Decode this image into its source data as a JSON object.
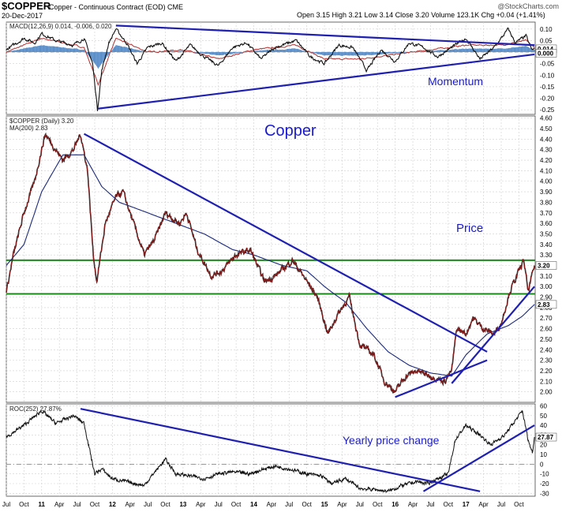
{
  "header": {
    "symbol": "$COPPER",
    "name": "Copper - Continuous Contract (EOD) CME",
    "date": "20-Dec-2017",
    "ohlc": "Open 3.15  High 3.21  Low 3.14  Close 3.20  Volume 123.1K  Chg +0.04 (+1.41%)",
    "credit": "@StockCharts.com"
  },
  "chart_data": [
    {
      "type": "line",
      "panel": "macd",
      "title": "MACD(12,26,9) 0.014, -0.006, 0.020",
      "annotation": "Momentum",
      "y_ticks": [
        "0.10",
        "0.05",
        "0.00",
        "-0.05",
        "-0.10",
        "-0.15",
        "-0.20",
        "-0.25"
      ],
      "ylim": [
        -0.27,
        0.13
      ],
      "value_labels": [
        "0.014",
        "0.000"
      ],
      "anchors": [
        [
          2010.5,
          0.01
        ],
        [
          2010.75,
          0.06
        ],
        [
          2010.9,
          0.04
        ],
        [
          2011.0,
          0.08
        ],
        [
          2011.2,
          0.05
        ],
        [
          2011.45,
          0.03
        ],
        [
          2011.6,
          0.06
        ],
        [
          2011.72,
          -0.05
        ],
        [
          2011.79,
          -0.25
        ],
        [
          2011.85,
          -0.08
        ],
        [
          2011.95,
          0.04
        ],
        [
          2012.05,
          0.1
        ],
        [
          2012.2,
          0.04
        ],
        [
          2012.35,
          -0.05
        ],
        [
          2012.5,
          0.02
        ],
        [
          2012.7,
          0.04
        ],
        [
          2012.9,
          -0.04
        ],
        [
          2013.1,
          0.03
        ],
        [
          2013.3,
          -0.02
        ],
        [
          2013.5,
          -0.06
        ],
        [
          2013.7,
          0.02
        ],
        [
          2013.9,
          0.04
        ],
        [
          2014.1,
          -0.03
        ],
        [
          2014.3,
          0.02
        ],
        [
          2014.6,
          0.05
        ],
        [
          2014.8,
          -0.02
        ],
        [
          2015.0,
          -0.05
        ],
        [
          2015.2,
          0.03
        ],
        [
          2015.4,
          0.02
        ],
        [
          2015.6,
          -0.08
        ],
        [
          2015.8,
          0.01
        ],
        [
          2016.0,
          -0.04
        ],
        [
          2016.2,
          0.04
        ],
        [
          2016.4,
          0.02
        ],
        [
          2016.6,
          -0.02
        ],
        [
          2016.85,
          0.03
        ],
        [
          2017.0,
          0.06
        ],
        [
          2017.2,
          -0.03
        ],
        [
          2017.4,
          0.02
        ],
        [
          2017.6,
          0.1
        ],
        [
          2017.7,
          0.04
        ],
        [
          2017.85,
          0.07
        ],
        [
          2017.93,
          0.01
        ],
        [
          2017.97,
          0.014
        ]
      ],
      "signal_anchors": [
        [
          2010.5,
          0.0
        ],
        [
          2011.0,
          0.06
        ],
        [
          2011.6,
          0.02
        ],
        [
          2011.8,
          -0.14
        ],
        [
          2012.05,
          0.06
        ],
        [
          2012.5,
          0.0
        ],
        [
          2013.0,
          0.01
        ],
        [
          2013.5,
          -0.03
        ],
        [
          2014.0,
          0.01
        ],
        [
          2014.6,
          0.03
        ],
        [
          2015.0,
          -0.03
        ],
        [
          2015.5,
          -0.03
        ],
        [
          2016.0,
          -0.01
        ],
        [
          2016.5,
          0.01
        ],
        [
          2017.0,
          0.03
        ],
        [
          2017.5,
          0.03
        ],
        [
          2017.85,
          0.05
        ],
        [
          2017.97,
          0.02
        ]
      ],
      "trendlines": [
        {
          "from": [
            2011.8,
            -0.245
          ],
          "to": [
            2017.97,
            -0.01
          ]
        },
        {
          "from": [
            2012.05,
            0.115
          ],
          "to": [
            2017.97,
            0.03
          ]
        }
      ]
    },
    {
      "type": "line",
      "panel": "price",
      "title": "$COPPER (Daily) 3.20",
      "ma_label": "MA(200) 2.83",
      "annotation_title": "Copper",
      "annotation_price": "Price",
      "y_ticks": [
        "4.60",
        "4.50",
        "4.40",
        "4.30",
        "4.20",
        "4.10",
        "4.00",
        "3.90",
        "3.80",
        "3.70",
        "3.60",
        "3.50",
        "3.40",
        "3.30",
        "3.20",
        "3.10",
        "3.00",
        "2.90",
        "2.80",
        "2.70",
        "2.60",
        "2.50",
        "2.40",
        "2.30",
        "2.20",
        "2.10",
        "2.00"
      ],
      "ylim": [
        1.9,
        4.62
      ],
      "value_labels": [
        "3.20",
        "2.83"
      ],
      "support_levels": [
        3.25,
        2.93
      ],
      "anchors": [
        [
          2010.5,
          2.95
        ],
        [
          2010.6,
          3.3
        ],
        [
          2010.75,
          3.7
        ],
        [
          2010.9,
          4.0
        ],
        [
          2011.05,
          4.45
        ],
        [
          2011.15,
          4.35
        ],
        [
          2011.3,
          4.2
        ],
        [
          2011.45,
          4.3
        ],
        [
          2011.55,
          4.45
        ],
        [
          2011.65,
          4.1
        ],
        [
          2011.73,
          3.3
        ],
        [
          2011.78,
          3.05
        ],
        [
          2011.9,
          3.6
        ],
        [
          2012.05,
          3.85
        ],
        [
          2012.15,
          3.9
        ],
        [
          2012.35,
          3.5
        ],
        [
          2012.45,
          3.3
        ],
        [
          2012.6,
          3.45
        ],
        [
          2012.75,
          3.7
        ],
        [
          2012.95,
          3.6
        ],
        [
          2013.05,
          3.7
        ],
        [
          2013.2,
          3.35
        ],
        [
          2013.4,
          3.1
        ],
        [
          2013.55,
          3.15
        ],
        [
          2013.75,
          3.3
        ],
        [
          2013.95,
          3.35
        ],
        [
          2014.15,
          3.05
        ],
        [
          2014.3,
          3.1
        ],
        [
          2014.55,
          3.25
        ],
        [
          2014.7,
          3.1
        ],
        [
          2014.9,
          2.9
        ],
        [
          2015.05,
          2.55
        ],
        [
          2015.2,
          2.75
        ],
        [
          2015.35,
          2.9
        ],
        [
          2015.5,
          2.45
        ],
        [
          2015.7,
          2.35
        ],
        [
          2015.85,
          2.1
        ],
        [
          2016.0,
          2.0
        ],
        [
          2016.15,
          2.15
        ],
        [
          2016.3,
          2.2
        ],
        [
          2016.5,
          2.15
        ],
        [
          2016.7,
          2.1
        ],
        [
          2016.8,
          2.2
        ],
        [
          2016.87,
          2.6
        ],
        [
          2017.0,
          2.55
        ],
        [
          2017.1,
          2.7
        ],
        [
          2017.25,
          2.6
        ],
        [
          2017.4,
          2.55
        ],
        [
          2017.5,
          2.65
        ],
        [
          2017.62,
          2.95
        ],
        [
          2017.72,
          3.1
        ],
        [
          2017.82,
          3.25
        ],
        [
          2017.88,
          2.95
        ],
        [
          2017.97,
          3.2
        ]
      ],
      "ma_anchors": [
        [
          2010.5,
          3.2
        ],
        [
          2010.75,
          3.4
        ],
        [
          2011.0,
          3.9
        ],
        [
          2011.3,
          4.25
        ],
        [
          2011.6,
          4.25
        ],
        [
          2011.85,
          3.95
        ],
        [
          2012.1,
          3.8
        ],
        [
          2012.5,
          3.7
        ],
        [
          2012.9,
          3.6
        ],
        [
          2013.3,
          3.5
        ],
        [
          2013.7,
          3.35
        ],
        [
          2014.0,
          3.3
        ],
        [
          2014.4,
          3.2
        ],
        [
          2014.75,
          3.15
        ],
        [
          2015.0,
          3.0
        ],
        [
          2015.3,
          2.85
        ],
        [
          2015.6,
          2.6
        ],
        [
          2015.9,
          2.38
        ],
        [
          2016.2,
          2.25
        ],
        [
          2016.5,
          2.18
        ],
        [
          2016.8,
          2.15
        ],
        [
          2017.0,
          2.35
        ],
        [
          2017.3,
          2.55
        ],
        [
          2017.6,
          2.63
        ],
        [
          2017.8,
          2.72
        ],
        [
          2017.97,
          2.83
        ]
      ],
      "trendlines": [
        {
          "from": [
            2011.6,
            4.45
          ],
          "to": [
            2017.3,
            2.38
          ]
        },
        {
          "from": [
            2016.0,
            1.95
          ],
          "to": [
            2017.3,
            2.3
          ]
        },
        {
          "from": [
            2016.8,
            2.08
          ],
          "to": [
            2017.97,
            3.0
          ]
        }
      ]
    },
    {
      "type": "line",
      "panel": "roc",
      "title": "ROC(252) 27.87%",
      "annotation": "Yearly price change",
      "y_ticks": [
        "60",
        "50",
        "40",
        "30",
        "20",
        "10",
        "0",
        "-10",
        "-20",
        "-30"
      ],
      "ylim": [
        -33,
        62
      ],
      "value_labels": [
        "27.87"
      ],
      "x_ticks": [
        "Jul",
        "Oct",
        "11",
        "Apr",
        "Jul",
        "Oct",
        "12",
        "Apr",
        "Jul",
        "Oct",
        "13",
        "Apr",
        "Jul",
        "Oct",
        "14",
        "Apr",
        "Jul",
        "Oct",
        "15",
        "Apr",
        "Jul",
        "Oct",
        "16",
        "Apr",
        "Jul",
        "Oct",
        "17",
        "Apr",
        "Jul",
        "Oct"
      ],
      "xlim": [
        2010.5,
        2017.98
      ],
      "anchors": [
        [
          2010.5,
          28
        ],
        [
          2010.75,
          40
        ],
        [
          2011.0,
          55
        ],
        [
          2011.2,
          42
        ],
        [
          2011.45,
          50
        ],
        [
          2011.6,
          42
        ],
        [
          2011.75,
          -10
        ],
        [
          2011.85,
          -5
        ],
        [
          2012.0,
          -15
        ],
        [
          2012.2,
          -18
        ],
        [
          2012.45,
          -22
        ],
        [
          2012.6,
          -8
        ],
        [
          2012.75,
          5
        ],
        [
          2012.9,
          -10
        ],
        [
          2013.1,
          -12
        ],
        [
          2013.3,
          -15
        ],
        [
          2013.5,
          -10
        ],
        [
          2013.7,
          -8
        ],
        [
          2013.95,
          -10
        ],
        [
          2014.1,
          -6
        ],
        [
          2014.3,
          -2
        ],
        [
          2014.5,
          -5
        ],
        [
          2014.75,
          -10
        ],
        [
          2014.95,
          -12
        ],
        [
          2015.1,
          -20
        ],
        [
          2015.3,
          -15
        ],
        [
          2015.5,
          -25
        ],
        [
          2015.7,
          -26
        ],
        [
          2015.9,
          -28
        ],
        [
          2016.1,
          -22
        ],
        [
          2016.3,
          -18
        ],
        [
          2016.45,
          -20
        ],
        [
          2016.6,
          -15
        ],
        [
          2016.75,
          -10
        ],
        [
          2016.85,
          25
        ],
        [
          2017.0,
          40
        ],
        [
          2017.2,
          30
        ],
        [
          2017.35,
          20
        ],
        [
          2017.55,
          30
        ],
        [
          2017.7,
          45
        ],
        [
          2017.8,
          55
        ],
        [
          2017.88,
          25
        ],
        [
          2017.94,
          12
        ],
        [
          2017.97,
          27.87
        ]
      ],
      "trendlines": [
        {
          "from": [
            2011.55,
            57
          ],
          "to": [
            2017.2,
            -28
          ]
        },
        {
          "from": [
            2016.4,
            -28
          ],
          "to": [
            2017.97,
            40
          ]
        }
      ]
    }
  ]
}
